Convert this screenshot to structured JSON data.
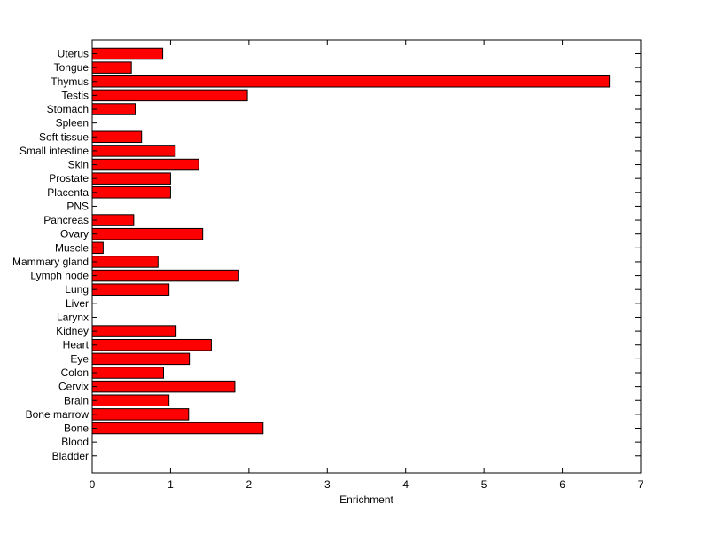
{
  "chart_data": {
    "type": "bar",
    "orientation": "horizontal",
    "title": "",
    "xlabel": "Enrichment",
    "ylabel": "",
    "xlim": [
      0,
      7
    ],
    "xticks": [
      "0",
      "1",
      "2",
      "3",
      "4",
      "5",
      "6",
      "7"
    ],
    "grid": false,
    "bar_color": "#ff0000",
    "categories": [
      "Uterus",
      "Tongue",
      "Thymus",
      "Testis",
      "Stomach",
      "Spleen",
      "Soft tissue",
      "Small intestine",
      "Skin",
      "Prostate",
      "Placenta",
      "PNS",
      "Pancreas",
      "Ovary",
      "Muscle",
      "Mammary gland",
      "Lymph node",
      "Lung",
      "Liver",
      "Larynx",
      "Kidney",
      "Heart",
      "Eye",
      "Colon",
      "Cervix",
      "Brain",
      "Bone marrow",
      "Bone",
      "Blood",
      "Bladder"
    ],
    "values": [
      0.9,
      0.5,
      6.6,
      1.98,
      0.55,
      0,
      0.63,
      1.06,
      1.36,
      1.0,
      1.0,
      0,
      0.53,
      1.41,
      0.14,
      0.84,
      1.87,
      0.98,
      0,
      0,
      1.07,
      1.52,
      1.24,
      0.91,
      1.82,
      0.98,
      1.23,
      2.18,
      0,
      0
    ]
  }
}
